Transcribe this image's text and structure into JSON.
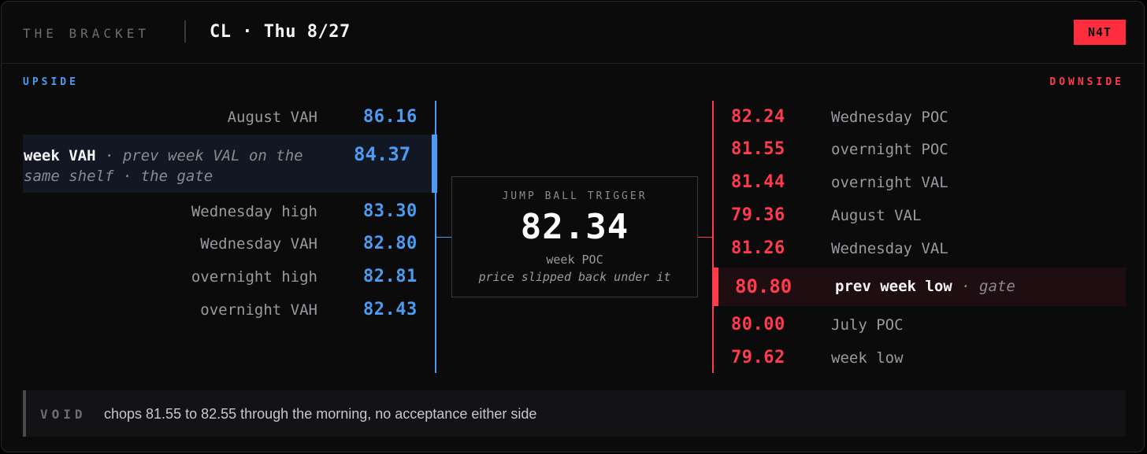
{
  "header": {
    "brand": "THE BRACKET",
    "instrument": "CL · Thu 8/27",
    "badge": "N4T"
  },
  "colors": {
    "upside": "#4b9cf2",
    "downside": "#ff3b4c",
    "badge": "#ff2d3d"
  },
  "upside": {
    "label": "UPSIDE",
    "levels": [
      {
        "label": "August VAH",
        "price": "86.16"
      },
      {
        "label_bold": "week VAH",
        "label_note": " · prev week VAL on the same shelf · the gate",
        "price": "84.37",
        "highlighted": true
      },
      {
        "label": "Wednesday high",
        "price": "83.30"
      },
      {
        "label": "Wednesday VAH",
        "price": "82.80"
      },
      {
        "label": "overnight high",
        "price": "82.81"
      },
      {
        "label": "overnight VAH",
        "price": "82.43"
      }
    ]
  },
  "center": {
    "title": "JUMP BALL TRIGGER",
    "price": "82.34",
    "subtitle": "week POC",
    "note": "price slipped back under it"
  },
  "downside": {
    "label": "DOWNSIDE",
    "levels": [
      {
        "price": "82.24",
        "label": "Wednesday POC"
      },
      {
        "price": "81.55",
        "label": "overnight POC"
      },
      {
        "price": "81.44",
        "label": "overnight VAL"
      },
      {
        "price": "79.36",
        "label": "August VAL"
      },
      {
        "price": "81.26",
        "label": "Wednesday VAL"
      },
      {
        "price": "80.80",
        "label_bold": "prev week low",
        "label_note": " · gate",
        "highlighted": true
      },
      {
        "price": "80.00",
        "label": "July POC"
      },
      {
        "price": "79.62",
        "label": "week low"
      }
    ]
  },
  "void": {
    "key": "VOID",
    "message": "chops 81.55 to 82.55 through the morning, no acceptance either side"
  }
}
